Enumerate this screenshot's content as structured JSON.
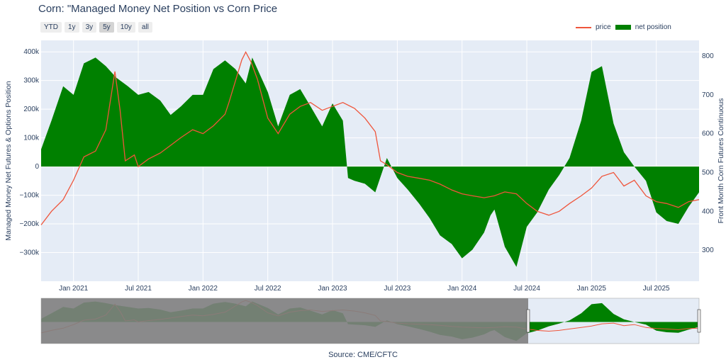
{
  "chart_data": {
    "type": "area+line",
    "title": "Corn: \"Managed Money Net Position vs Corn Price",
    "y_left_label": "Managed Money Net Futures & Options Position",
    "y_right_label": "Front Month Corn Futures Continuous",
    "y_left_range": [
      -400000,
      440000
    ],
    "y_right_range": [
      220,
      840
    ],
    "y_left_ticks": [
      {
        "v": 400000,
        "label": "400k"
      },
      {
        "v": 300000,
        "label": "300k"
      },
      {
        "v": 200000,
        "label": "200k"
      },
      {
        "v": 100000,
        "label": "100k"
      },
      {
        "v": 0,
        "label": "0"
      },
      {
        "v": -100000,
        "label": "−100k"
      },
      {
        "v": -200000,
        "label": "−200k"
      },
      {
        "v": -300000,
        "label": "−300k"
      }
    ],
    "y_right_ticks": [
      {
        "v": 800,
        "label": "800"
      },
      {
        "v": 700,
        "label": "700"
      },
      {
        "v": 600,
        "label": "600"
      },
      {
        "v": 500,
        "label": "500"
      },
      {
        "v": 400,
        "label": "400"
      },
      {
        "v": 300,
        "label": "300"
      }
    ],
    "x_range": [
      2020.75,
      2025.83
    ],
    "x_ticks": [
      {
        "v": 2021.0,
        "label": "Jan 2021"
      },
      {
        "v": 2021.5,
        "label": "Jul 2021"
      },
      {
        "v": 2022.0,
        "label": "Jan 2022"
      },
      {
        "v": 2022.5,
        "label": "Jul 2022"
      },
      {
        "v": 2023.0,
        "label": "Jan 2023"
      },
      {
        "v": 2023.5,
        "label": "Jul 2023"
      },
      {
        "v": 2024.0,
        "label": "Jan 2024"
      },
      {
        "v": 2024.5,
        "label": "Jul 2024"
      },
      {
        "v": 2025.0,
        "label": "Jan 2025"
      },
      {
        "v": 2025.5,
        "label": "Jul 2025"
      }
    ],
    "colors": {
      "price": "#EF553B",
      "net_position": "#008000",
      "plot_bg": "#E5ECF6",
      "grid": "#ffffff",
      "range_mask": "#808080"
    },
    "series": [
      {
        "name": "price",
        "axis": "right",
        "x": [
          2020.75,
          2020.83,
          2020.92,
          2021.0,
          2021.08,
          2021.17,
          2021.25,
          2021.32,
          2021.36,
          2021.4,
          2021.47,
          2021.5,
          2021.58,
          2021.67,
          2021.75,
          2021.83,
          2021.92,
          2022.0,
          2022.08,
          2022.17,
          2022.2,
          2022.3,
          2022.33,
          2022.37,
          2022.42,
          2022.5,
          2022.58,
          2022.67,
          2022.75,
          2022.83,
          2022.92,
          2023.0,
          2023.08,
          2023.17,
          2023.25,
          2023.33,
          2023.37,
          2023.42,
          2023.5,
          2023.58,
          2023.67,
          2023.75,
          2023.83,
          2023.92,
          2024.0,
          2024.08,
          2024.17,
          2024.25,
          2024.33,
          2024.42,
          2024.5,
          2024.58,
          2024.67,
          2024.75,
          2024.83,
          2024.92,
          2025.0,
          2025.08,
          2025.17,
          2025.25,
          2025.33,
          2025.42,
          2025.5,
          2025.58,
          2025.67,
          2025.75,
          2025.83
        ],
        "y": [
          365,
          400,
          430,
          480,
          540,
          555,
          610,
          760,
          660,
          530,
          545,
          515,
          535,
          550,
          570,
          590,
          610,
          600,
          620,
          650,
          680,
          790,
          810,
          785,
          740,
          640,
          600,
          650,
          670,
          680,
          660,
          670,
          680,
          665,
          640,
          605,
          530,
          520,
          500,
          490,
          485,
          480,
          470,
          455,
          445,
          440,
          435,
          440,
          450,
          445,
          420,
          400,
          390,
          400,
          420,
          440,
          460,
          490,
          500,
          465,
          480,
          440,
          425,
          420,
          410,
          425,
          430
        ]
      },
      {
        "name": "net position",
        "axis": "left",
        "x": [
          2020.75,
          2020.83,
          2020.92,
          2021.0,
          2021.08,
          2021.17,
          2021.25,
          2021.33,
          2021.42,
          2021.5,
          2021.58,
          2021.67,
          2021.75,
          2021.83,
          2021.92,
          2022.0,
          2022.08,
          2022.17,
          2022.25,
          2022.33,
          2022.38,
          2022.42,
          2022.5,
          2022.58,
          2022.67,
          2022.75,
          2022.83,
          2022.92,
          2023.0,
          2023.08,
          2023.12,
          2023.17,
          2023.25,
          2023.33,
          2023.42,
          2023.5,
          2023.58,
          2023.67,
          2023.75,
          2023.83,
          2023.92,
          2024.0,
          2024.08,
          2024.17,
          2024.22,
          2024.25,
          2024.33,
          2024.42,
          2024.5,
          2024.58,
          2024.67,
          2024.75,
          2024.83,
          2024.92,
          2025.0,
          2025.08,
          2025.17,
          2025.25,
          2025.33,
          2025.42,
          2025.5,
          2025.58,
          2025.67,
          2025.75,
          2025.83
        ],
        "y": [
          60000,
          160000,
          280000,
          250000,
          360000,
          380000,
          350000,
          310000,
          280000,
          250000,
          260000,
          230000,
          180000,
          210000,
          250000,
          250000,
          340000,
          370000,
          340000,
          290000,
          380000,
          340000,
          260000,
          140000,
          250000,
          270000,
          210000,
          140000,
          220000,
          160000,
          -40000,
          -50000,
          -60000,
          -90000,
          30000,
          -40000,
          -80000,
          -130000,
          -180000,
          -240000,
          -270000,
          -320000,
          -290000,
          -230000,
          -170000,
          -150000,
          -280000,
          -350000,
          -210000,
          -160000,
          -80000,
          -30000,
          30000,
          160000,
          330000,
          350000,
          150000,
          50000,
          0,
          -50000,
          -160000,
          -190000,
          -200000,
          -140000,
          -90000
        ]
      }
    ]
  },
  "range_selector": {
    "buttons": [
      "YTD",
      "1y",
      "3y",
      "5y",
      "10y",
      "all"
    ],
    "active": "5y"
  },
  "legend": {
    "price": "price",
    "net_position": "net position"
  },
  "source": "Source: CME/CFTC"
}
